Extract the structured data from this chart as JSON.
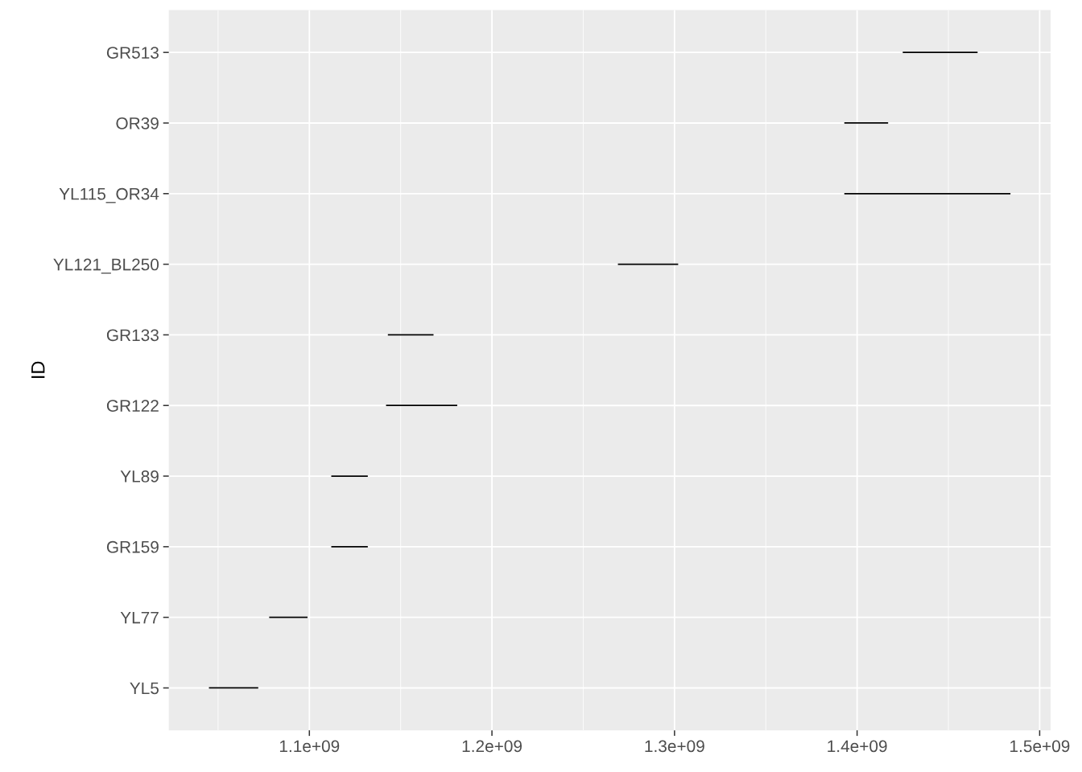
{
  "chart_data": {
    "type": "bar",
    "orientation": "horizontal",
    "ylabel": "ID",
    "categories": [
      "GR513",
      "OR39",
      "YL115_OR34",
      "YL121_BL250",
      "GR133",
      "GR122",
      "YL89",
      "GR159",
      "YL77",
      "YL5"
    ],
    "base": [
      1425000000,
      1393000000,
      1393000000,
      1269000000,
      1143000000,
      1142000000,
      1112000000,
      1112000000,
      1078000000,
      1045000000
    ],
    "values": [
      41000000,
      24000000,
      91000000,
      33000000,
      25000000,
      39000000,
      20000000,
      20000000,
      21000000,
      27000000
    ],
    "color": "#000000",
    "xlim": [
      1023000000,
      1506000000
    ],
    "xticks": [
      {
        "value": 1100000000,
        "label": "1.1e+09"
      },
      {
        "value": 1200000000,
        "label": "1.2e+09"
      },
      {
        "value": 1300000000,
        "label": "1.3e+09"
      },
      {
        "value": 1400000000,
        "label": "1.4e+09"
      },
      {
        "value": 1500000000,
        "label": "1.5e+09"
      }
    ],
    "grid": true
  }
}
